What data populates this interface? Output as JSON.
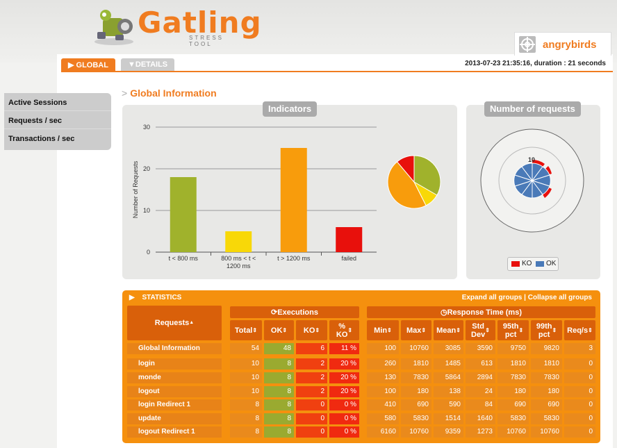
{
  "header": {
    "logo_text": "Gatling",
    "logo_sub": "STRESS TOOL",
    "simulation_name": "angrybirds"
  },
  "tabs": [
    {
      "label": "GLOBAL",
      "icon": "triangle-right-icon"
    },
    {
      "label": "DETAILS",
      "icon": "triangle-down-icon"
    }
  ],
  "run_info": "2013-07-23 21:35:16, duration : 21 seconds",
  "sidebar": {
    "items": [
      {
        "label": "Active Sessions"
      },
      {
        "label": "Requests / sec"
      },
      {
        "label": "Transactions / sec"
      }
    ]
  },
  "section_title": "Global Information",
  "indicators": {
    "title": "Indicators",
    "colors": [
      "#a0b22c",
      "#f8d808",
      "#f89c0c",
      "#e8100c"
    ],
    "chart_data": {
      "type": "bar",
      "title": "",
      "ylabel": "Number of Requests",
      "ylim": [
        0,
        30
      ],
      "yticks": [
        "0",
        "10",
        "20",
        "30"
      ],
      "categories": [
        [
          "t < 800 ms"
        ],
        [
          "800 ms < t <",
          "1200 ms"
        ],
        [
          "t > 1200 ms"
        ],
        [
          "failed"
        ]
      ],
      "values": [
        18,
        5,
        25,
        6
      ]
    },
    "pie": {
      "type": "pie",
      "values": [
        18,
        5,
        25,
        6
      ],
      "colors": [
        "#a0b22c",
        "#f8d808",
        "#f89c0c",
        "#e8100c"
      ]
    }
  },
  "requests_panel": {
    "title": "Number of requests",
    "center_label": "10",
    "legend": [
      {
        "label": "KO",
        "color": "#e8100c"
      },
      {
        "label": "OK",
        "color": "#4a7ab8"
      }
    ]
  },
  "statistics": {
    "title": "STATISTICS",
    "expand_label": "Expand all groups",
    "separator": "|",
    "collapse_label": "Collapse all groups",
    "group_executions": "Executions",
    "group_response": "Response Time (ms)",
    "col_requests": "Requests",
    "columns": [
      [
        "Total"
      ],
      [
        "OK"
      ],
      [
        "KO"
      ],
      [
        "%",
        "KO"
      ],
      [
        "Min"
      ],
      [
        "Max"
      ],
      [
        "Mean"
      ],
      [
        "Std",
        "Dev"
      ],
      [
        "95th",
        "pct"
      ],
      [
        "99th",
        "pct"
      ],
      [
        "Req/s"
      ]
    ],
    "rows": [
      {
        "name": "Global Information",
        "vals": [
          "54",
          "48",
          "6",
          "11 %",
          "100",
          "10760",
          "3085",
          "3590",
          "9750",
          "9820",
          "3"
        ],
        "ko_red": true
      },
      {
        "name": "login",
        "vals": [
          "10",
          "8",
          "2",
          "20 %",
          "260",
          "1810",
          "1485",
          "613",
          "1810",
          "1810",
          "0"
        ],
        "ko_red": true
      },
      {
        "name": "monde",
        "vals": [
          "10",
          "8",
          "2",
          "20 %",
          "130",
          "7830",
          "5864",
          "2894",
          "7830",
          "7830",
          "0"
        ],
        "ko_red": true
      },
      {
        "name": "logout",
        "vals": [
          "10",
          "8",
          "2",
          "20 %",
          "100",
          "180",
          "138",
          "24",
          "180",
          "180",
          "0"
        ],
        "ko_red": true
      },
      {
        "name": "login Redirect 1",
        "vals": [
          "8",
          "8",
          "0",
          "0 %",
          "410",
          "690",
          "590",
          "84",
          "690",
          "690",
          "0"
        ],
        "ko_red": false
      },
      {
        "name": "update",
        "vals": [
          "8",
          "8",
          "0",
          "0 %",
          "580",
          "5830",
          "1514",
          "1640",
          "5830",
          "5830",
          "0"
        ],
        "ko_red": false
      },
      {
        "name": "logout Redirect 1",
        "vals": [
          "8",
          "8",
          "0",
          "0 %",
          "6160",
          "10760",
          "9359",
          "1273",
          "10760",
          "10760",
          "0"
        ],
        "ko_red": false
      }
    ]
  }
}
